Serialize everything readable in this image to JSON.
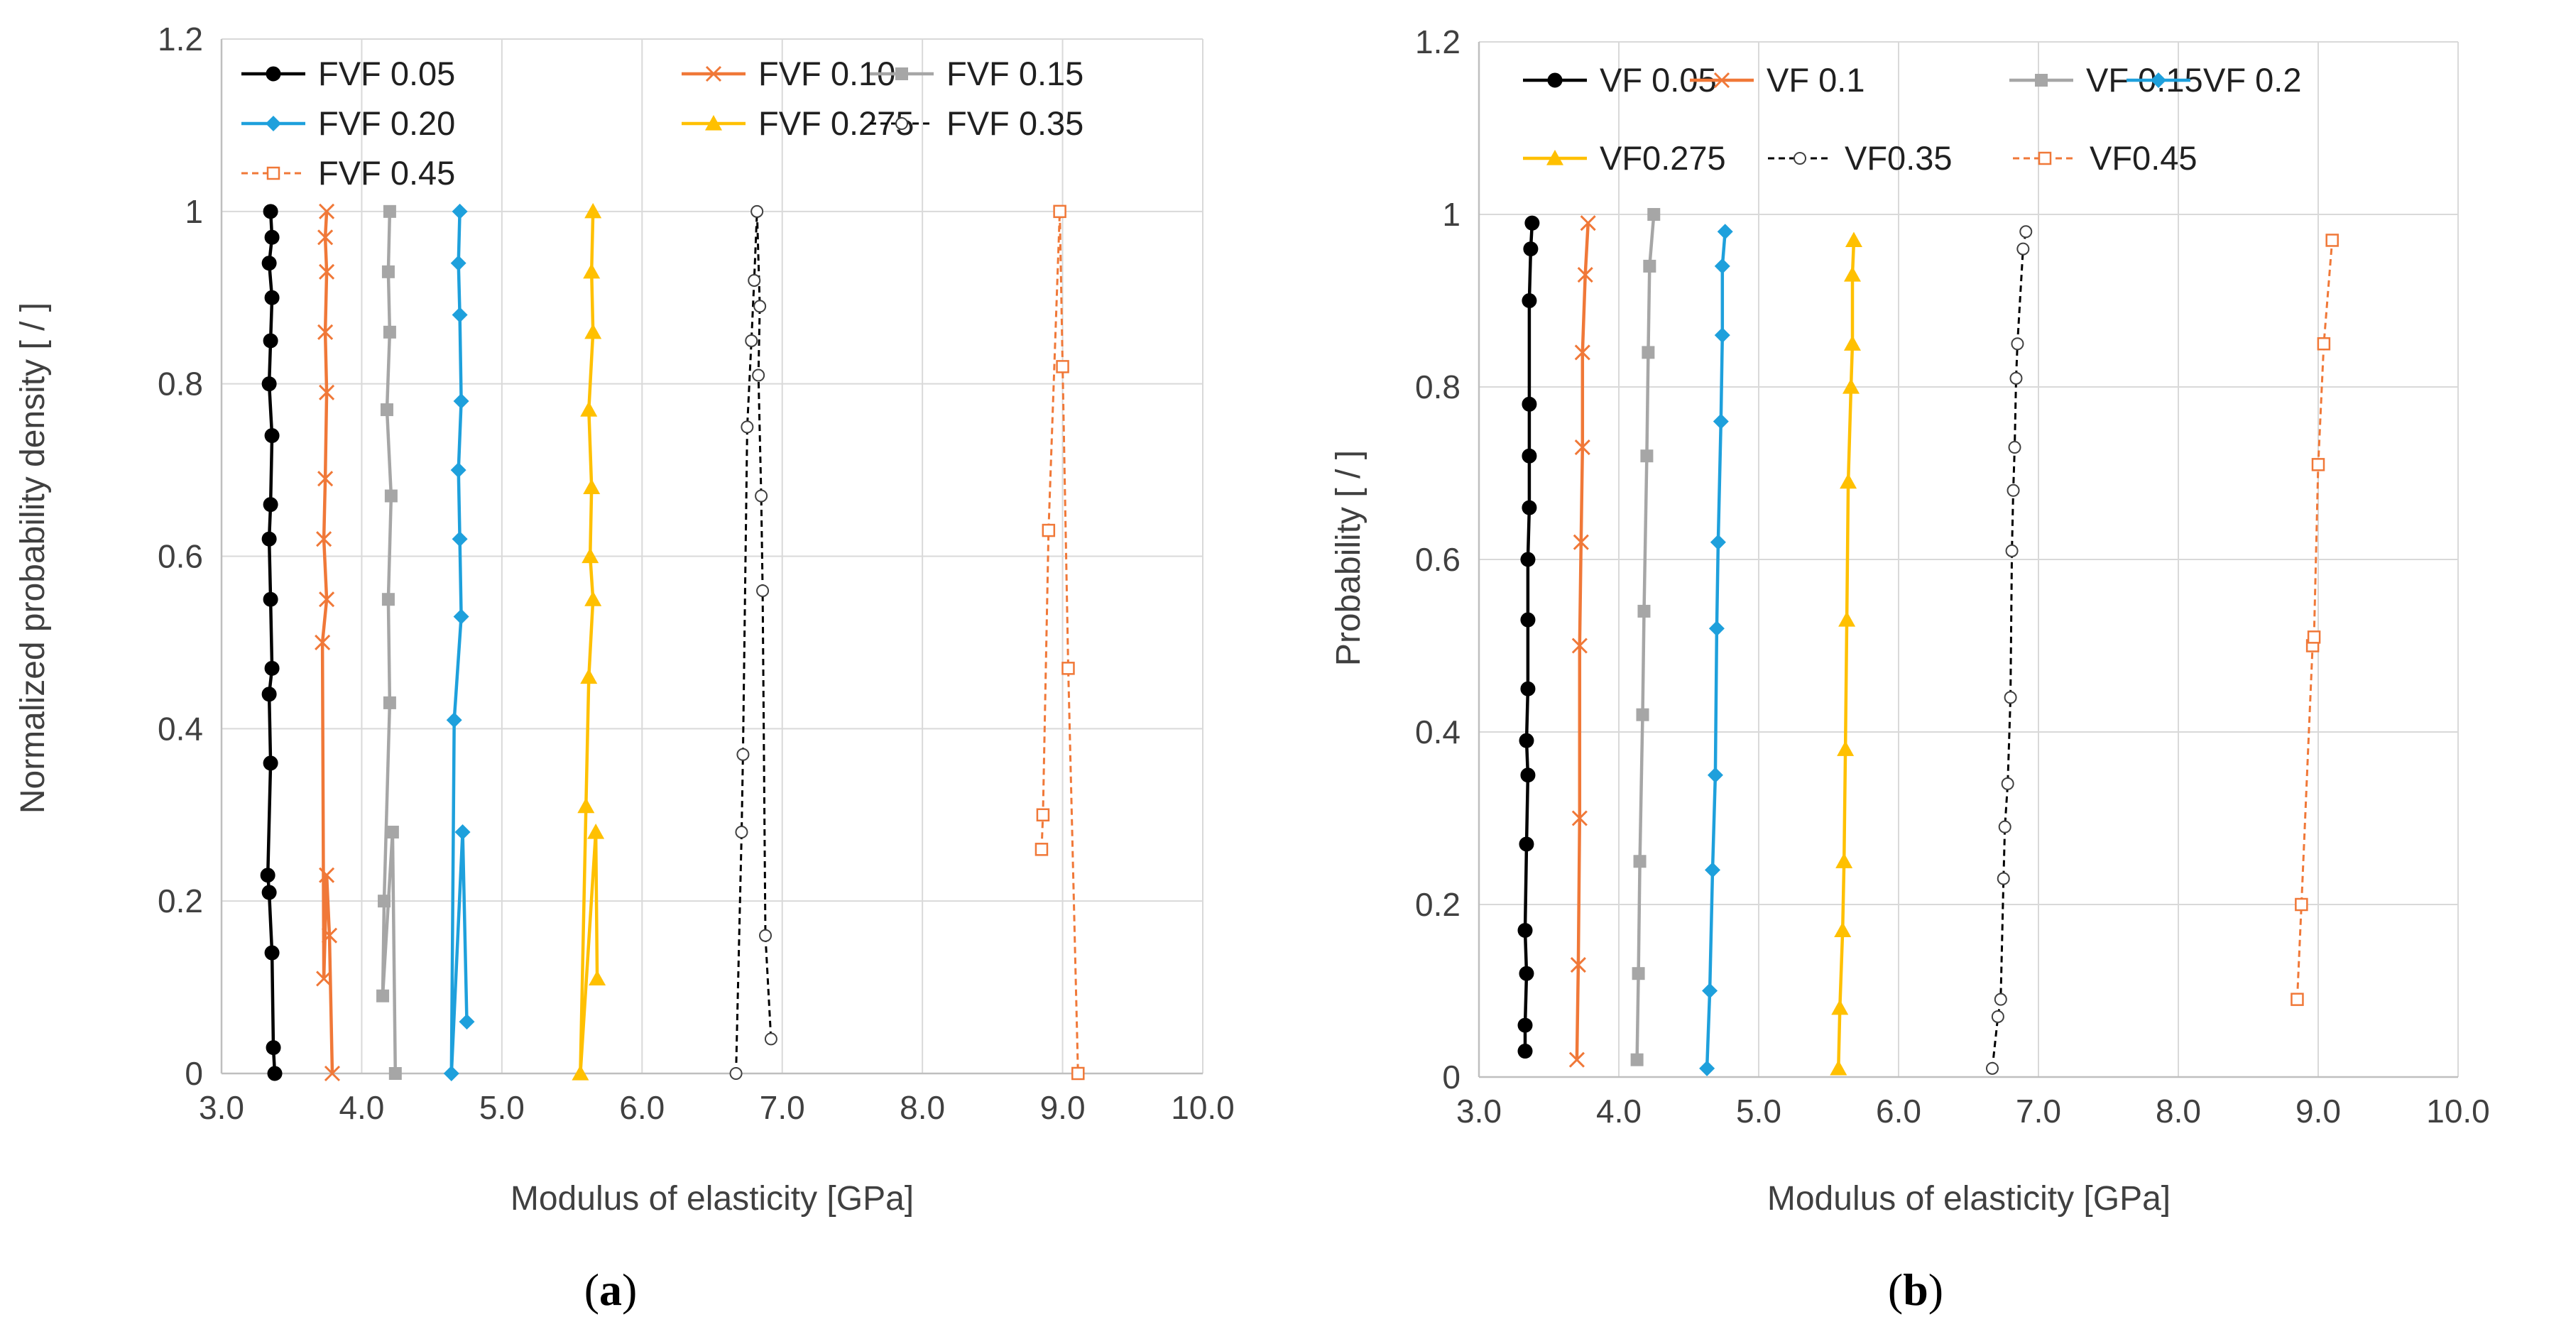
{
  "chart_data": [
    {
      "type": "line",
      "panel": "a",
      "caption": "(a)",
      "caption_letter": "a",
      "xlabel": "Modulus of elasticity [GPa]",
      "ylabel": "Normalized probability density [ / ]",
      "xlim": [
        3.0,
        10.0
      ],
      "ylim": [
        0,
        1.2
      ],
      "xticks": [
        "3.0",
        "4.0",
        "5.0",
        "6.0",
        "7.0",
        "8.0",
        "9.0",
        "10.0"
      ],
      "yticks": [
        "0",
        "0.2",
        "0.4",
        "0.6",
        "0.8",
        "1",
        "1.2"
      ],
      "grid": true,
      "legend_position": "top",
      "series": [
        {
          "name": "FVF 0.05",
          "color": "#000000",
          "marker": "circle-filled",
          "dash": false,
          "points": [
            [
              3.38,
              0.0
            ],
            [
              3.37,
              0.03
            ],
            [
              3.36,
              0.14
            ],
            [
              3.34,
              0.21
            ],
            [
              3.33,
              0.23
            ],
            [
              3.35,
              0.36
            ],
            [
              3.34,
              0.44
            ],
            [
              3.36,
              0.47
            ],
            [
              3.35,
              0.55
            ],
            [
              3.34,
              0.62
            ],
            [
              3.35,
              0.66
            ],
            [
              3.36,
              0.74
            ],
            [
              3.34,
              0.8
            ],
            [
              3.35,
              0.85
            ],
            [
              3.36,
              0.9
            ],
            [
              3.34,
              0.94
            ],
            [
              3.36,
              0.97
            ],
            [
              3.35,
              1.0
            ]
          ]
        },
        {
          "name": "FVF 0.10",
          "color": "#F07838",
          "marker": "x",
          "dash": false,
          "points": [
            [
              3.79,
              0.0
            ],
            [
              3.77,
              0.16
            ],
            [
              3.75,
              0.23
            ],
            [
              3.73,
              0.11
            ],
            [
              3.72,
              0.5
            ],
            [
              3.75,
              0.55
            ],
            [
              3.73,
              0.62
            ],
            [
              3.74,
              0.69
            ],
            [
              3.75,
              0.79
            ],
            [
              3.74,
              0.86
            ],
            [
              3.75,
              0.93
            ],
            [
              3.74,
              0.97
            ],
            [
              3.75,
              1.0
            ]
          ]
        },
        {
          "name": "FVF 0.15",
          "color": "#A6A6A6",
          "marker": "square-filled",
          "dash": false,
          "points": [
            [
              4.24,
              0.0
            ],
            [
              4.22,
              0.28
            ],
            [
              4.15,
              0.09
            ],
            [
              4.16,
              0.2
            ],
            [
              4.2,
              0.43
            ],
            [
              4.19,
              0.55
            ],
            [
              4.21,
              0.67
            ],
            [
              4.18,
              0.77
            ],
            [
              4.2,
              0.86
            ],
            [
              4.19,
              0.93
            ],
            [
              4.2,
              1.0
            ]
          ]
        },
        {
          "name": "FVF 0.20",
          "color": "#1EA0DC",
          "marker": "diamond-filled",
          "dash": false,
          "points": [
            [
              4.75,
              0.06
            ],
            [
              4.72,
              0.28
            ],
            [
              4.64,
              0.0
            ],
            [
              4.66,
              0.41
            ],
            [
              4.71,
              0.53
            ],
            [
              4.7,
              0.62
            ],
            [
              4.69,
              0.7
            ],
            [
              4.71,
              0.78
            ],
            [
              4.7,
              0.88
            ],
            [
              4.69,
              0.94
            ],
            [
              4.7,
              1.0
            ]
          ]
        },
        {
          "name": "FVF 0.275",
          "color": "#FFC000",
          "marker": "triangle-filled",
          "dash": false,
          "points": [
            [
              5.68,
              0.11
            ],
            [
              5.67,
              0.28
            ],
            [
              5.56,
              0.0
            ],
            [
              5.6,
              0.31
            ],
            [
              5.62,
              0.46
            ],
            [
              5.65,
              0.55
            ],
            [
              5.63,
              0.6
            ],
            [
              5.64,
              0.68
            ],
            [
              5.62,
              0.77
            ],
            [
              5.65,
              0.86
            ],
            [
              5.64,
              0.93
            ],
            [
              5.65,
              1.0
            ]
          ]
        },
        {
          "name": "FVF 0.35",
          "color": "#000000",
          "marker": "circle-open",
          "dash": true,
          "points": [
            [
              6.67,
              0.0
            ],
            [
              6.71,
              0.28
            ],
            [
              6.72,
              0.37
            ],
            [
              6.75,
              0.75
            ],
            [
              6.78,
              0.85
            ],
            [
              6.8,
              0.92
            ],
            [
              6.82,
              1.0
            ],
            [
              6.84,
              0.89
            ],
            [
              6.83,
              0.81
            ],
            [
              6.85,
              0.67
            ],
            [
              6.86,
              0.56
            ],
            [
              6.88,
              0.16
            ],
            [
              6.92,
              0.04
            ]
          ]
        },
        {
          "name": "FVF 0.45",
          "color": "#F07838",
          "marker": "square-open",
          "dash": true,
          "points": [
            [
              8.85,
              0.26
            ],
            [
              8.86,
              0.3
            ],
            [
              8.9,
              0.63
            ],
            [
              8.98,
              1.0
            ],
            [
              9.0,
              0.82
            ],
            [
              9.04,
              0.47
            ],
            [
              9.11,
              0.0
            ]
          ]
        }
      ]
    },
    {
      "type": "line",
      "panel": "b",
      "caption": "(b)",
      "caption_letter": "b",
      "xlabel": "Modulus of elasticity [GPa]",
      "ylabel": "Probability [ / ]",
      "xlim": [
        3.0,
        10.0
      ],
      "ylim": [
        0,
        1.2
      ],
      "xticks": [
        "3.0",
        "4.0",
        "5.0",
        "6.0",
        "7.0",
        "8.0",
        "9.0",
        "10.0"
      ],
      "yticks": [
        "0",
        "0.2",
        "0.4",
        "0.6",
        "0.8",
        "1",
        "1.2"
      ],
      "grid": true,
      "legend_position": "top",
      "series": [
        {
          "name": "VF 0.05",
          "color": "#000000",
          "marker": "circle-filled",
          "dash": false,
          "points": [
            [
              3.33,
              0.03
            ],
            [
              3.33,
              0.06
            ],
            [
              3.34,
              0.12
            ],
            [
              3.33,
              0.17
            ],
            [
              3.34,
              0.27
            ],
            [
              3.35,
              0.35
            ],
            [
              3.34,
              0.39
            ],
            [
              3.35,
              0.45
            ],
            [
              3.35,
              0.53
            ],
            [
              3.35,
              0.6
            ],
            [
              3.36,
              0.66
            ],
            [
              3.36,
              0.72
            ],
            [
              3.36,
              0.78
            ],
            [
              3.36,
              0.9
            ],
            [
              3.37,
              0.96
            ],
            [
              3.38,
              0.99
            ]
          ]
        },
        {
          "name": "VF 0.1",
          "color": "#F07838",
          "marker": "x",
          "dash": false,
          "points": [
            [
              3.7,
              0.02
            ],
            [
              3.71,
              0.13
            ],
            [
              3.72,
              0.3
            ],
            [
              3.72,
              0.5
            ],
            [
              3.73,
              0.62
            ],
            [
              3.74,
              0.73
            ],
            [
              3.74,
              0.84
            ],
            [
              3.76,
              0.93
            ],
            [
              3.78,
              0.99
            ]
          ]
        },
        {
          "name": "VF 0.15",
          "color": "#A6A6A6",
          "marker": "square-filled",
          "dash": false,
          "points": [
            [
              4.13,
              0.02
            ],
            [
              4.14,
              0.12
            ],
            [
              4.15,
              0.25
            ],
            [
              4.17,
              0.42
            ],
            [
              4.18,
              0.54
            ],
            [
              4.2,
              0.72
            ],
            [
              4.21,
              0.84
            ],
            [
              4.22,
              0.94
            ],
            [
              4.25,
              1.0
            ]
          ]
        },
        {
          "name": "VF 0.2",
          "color": "#1EA0DC",
          "marker": "diamond-filled",
          "dash": false,
          "points": [
            [
              4.63,
              0.01
            ],
            [
              4.65,
              0.1
            ],
            [
              4.67,
              0.24
            ],
            [
              4.69,
              0.35
            ],
            [
              4.7,
              0.52
            ],
            [
              4.71,
              0.62
            ],
            [
              4.73,
              0.76
            ],
            [
              4.74,
              0.86
            ],
            [
              4.74,
              0.94
            ],
            [
              4.76,
              0.98
            ]
          ]
        },
        {
          "name": "VF0.275",
          "color": "#FFC000",
          "marker": "triangle-filled",
          "dash": false,
          "points": [
            [
              5.57,
              0.01
            ],
            [
              5.58,
              0.08
            ],
            [
              5.6,
              0.17
            ],
            [
              5.61,
              0.25
            ],
            [
              5.62,
              0.38
            ],
            [
              5.63,
              0.53
            ],
            [
              5.64,
              0.69
            ],
            [
              5.66,
              0.8
            ],
            [
              5.67,
              0.85
            ],
            [
              5.67,
              0.93
            ],
            [
              5.68,
              0.97
            ]
          ]
        },
        {
          "name": "VF0.35",
          "color": "#000000",
          "marker": "circle-open",
          "dash": true,
          "points": [
            [
              6.67,
              0.01
            ],
            [
              6.71,
              0.07
            ],
            [
              6.73,
              0.09
            ],
            [
              6.75,
              0.23
            ],
            [
              6.76,
              0.29
            ],
            [
              6.78,
              0.34
            ],
            [
              6.8,
              0.44
            ],
            [
              6.81,
              0.61
            ],
            [
              6.82,
              0.68
            ],
            [
              6.83,
              0.73
            ],
            [
              6.84,
              0.81
            ],
            [
              6.85,
              0.85
            ],
            [
              6.89,
              0.96
            ],
            [
              6.91,
              0.98
            ]
          ]
        },
        {
          "name": "VF0.45",
          "color": "#F07838",
          "marker": "square-open",
          "dash": true,
          "points": [
            [
              8.85,
              0.09
            ],
            [
              8.88,
              0.2
            ],
            [
              8.96,
              0.5
            ],
            [
              8.97,
              0.51
            ],
            [
              9.0,
              0.71
            ],
            [
              9.04,
              0.85
            ],
            [
              9.1,
              0.97
            ]
          ]
        }
      ]
    }
  ]
}
